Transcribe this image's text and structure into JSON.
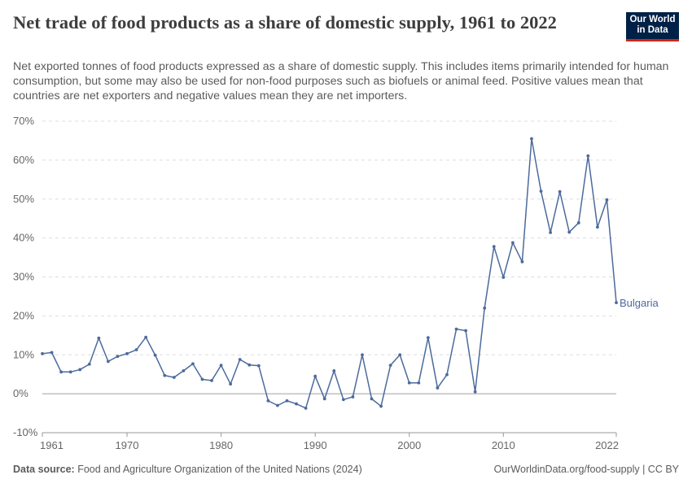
{
  "header": {
    "title": "Net trade of food products as a share of domestic supply, 1961 to 2022",
    "subtitle": "Net exported tonnes of food products expressed as a share of domestic supply. This includes items primarily intended for human consumption, but some may also be used for non-food purposes such as biofuels or animal feed. Positive values mean that countries are net exporters and negative values mean they are net importers."
  },
  "logo": {
    "line1": "Our World",
    "line2": "in Data",
    "bg_color": "#002147",
    "accent_color": "#ce261e"
  },
  "footer": {
    "source_label": "Data source:",
    "source_text": "Food and Agriculture Organization of the United Nations (2024)",
    "right_text": "OurWorldinData.org/food-supply | CC BY"
  },
  "chart_data": {
    "type": "line",
    "title": "Net trade of food products as a share of domestic supply, 1961 to 2022",
    "xlabel": "",
    "ylabel": "",
    "xlim": [
      1961,
      2022
    ],
    "ylim": [
      -10,
      70
    ],
    "x_ticks": [
      "1961",
      "1970",
      "1980",
      "1990",
      "2000",
      "2010",
      "2022"
    ],
    "x_tick_values": [
      1961,
      1970,
      1980,
      1990,
      2000,
      2010,
      2022
    ],
    "y_ticks": [
      "-10%",
      "0%",
      "10%",
      "20%",
      "30%",
      "40%",
      "50%",
      "60%",
      "70%"
    ],
    "y_tick_values": [
      -10,
      0,
      10,
      20,
      30,
      40,
      50,
      60,
      70
    ],
    "grid": "horizontal-dashed",
    "line_color": "#4c6a9c",
    "series": [
      {
        "name": "Bulgaria",
        "x": [
          1961,
          1962,
          1963,
          1964,
          1965,
          1966,
          1967,
          1968,
          1969,
          1970,
          1971,
          1972,
          1973,
          1974,
          1975,
          1976,
          1977,
          1978,
          1979,
          1980,
          1981,
          1982,
          1983,
          1984,
          1985,
          1986,
          1987,
          1988,
          1989,
          1990,
          1991,
          1992,
          1993,
          1994,
          1995,
          1996,
          1997,
          1998,
          1999,
          2000,
          2001,
          2002,
          2003,
          2004,
          2005,
          2006,
          2007,
          2008,
          2009,
          2010,
          2011,
          2012,
          2013,
          2014,
          2015,
          2016,
          2017,
          2018,
          2019,
          2020,
          2021,
          2022
        ],
        "values": [
          10.3,
          10.6,
          5.6,
          5.6,
          6.2,
          7.6,
          14.3,
          8.3,
          9.6,
          10.3,
          11.3,
          14.5,
          9.9,
          4.7,
          4.2,
          5.9,
          7.7,
          3.7,
          3.4,
          7.3,
          2.5,
          8.8,
          7.4,
          7.2,
          -1.8,
          -3.0,
          -1.8,
          -2.6,
          -3.7,
          4.5,
          -1.3,
          5.9,
          -1.5,
          -0.8,
          10.0,
          -1.3,
          -3.2,
          7.3,
          10.0,
          2.8,
          2.8,
          14.4,
          1.5,
          4.9,
          16.6,
          16.2,
          0.5,
          22.0,
          37.8,
          29.9,
          38.8,
          33.9,
          65.5,
          52.0,
          41.4,
          51.9,
          41.5,
          43.9,
          61.1,
          42.8,
          49.8,
          23.4
        ]
      }
    ]
  }
}
